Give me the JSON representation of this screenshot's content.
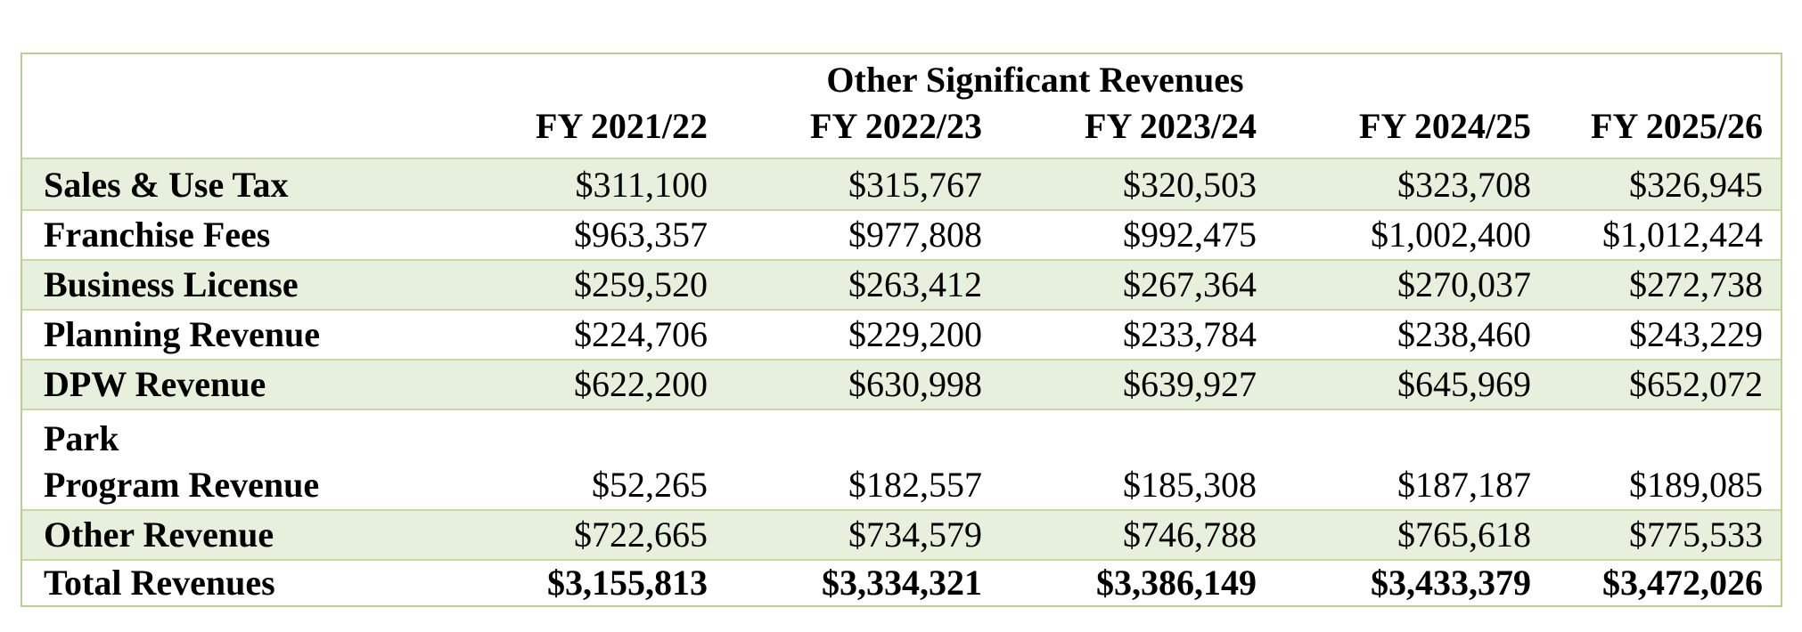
{
  "title": "Other Significant Revenues",
  "columns": [
    "FY 2021/22",
    "FY 2022/23",
    "FY 2023/24",
    "FY 2024/25",
    "FY 2025/26"
  ],
  "rows": [
    {
      "label": "Sales & Use Tax",
      "values": [
        "$311,100",
        "$315,767",
        "$320,503",
        "$323,708",
        "$326,945"
      ]
    },
    {
      "label": "Franchise Fees",
      "values": [
        "$963,357",
        "$977,808",
        "$992,475",
        "$1,002,400",
        "$1,012,424"
      ]
    },
    {
      "label": "Business License",
      "values": [
        "$259,520",
        "$263,412",
        "$267,364",
        "$270,037",
        "$272,738"
      ]
    },
    {
      "label": "Planning Revenue",
      "values": [
        "$224,706",
        "$229,200",
        "$233,784",
        "$238,460",
        "$243,229"
      ]
    },
    {
      "label": "DPW Revenue",
      "values": [
        "$622,200",
        "$630,998",
        "$639,927",
        "$645,969",
        "$652,072"
      ]
    },
    {
      "label_line1": "Park",
      "label_line2": "Program Revenue",
      "values": [
        "$52,265",
        "$182,557",
        "$185,308",
        "$187,187",
        "$189,085"
      ]
    },
    {
      "label": "Other Revenue",
      "values": [
        "$722,665",
        "$734,579",
        "$746,788",
        "$765,618",
        "$775,533"
      ]
    },
    {
      "label": "Total Revenues",
      "values": [
        "$3,155,813",
        "$3,334,321",
        "$3,386,149",
        "$3,433,379",
        "$3,472,026"
      ]
    }
  ],
  "colors": {
    "band": "#e7f0dc",
    "border": "#b9cf8e"
  }
}
